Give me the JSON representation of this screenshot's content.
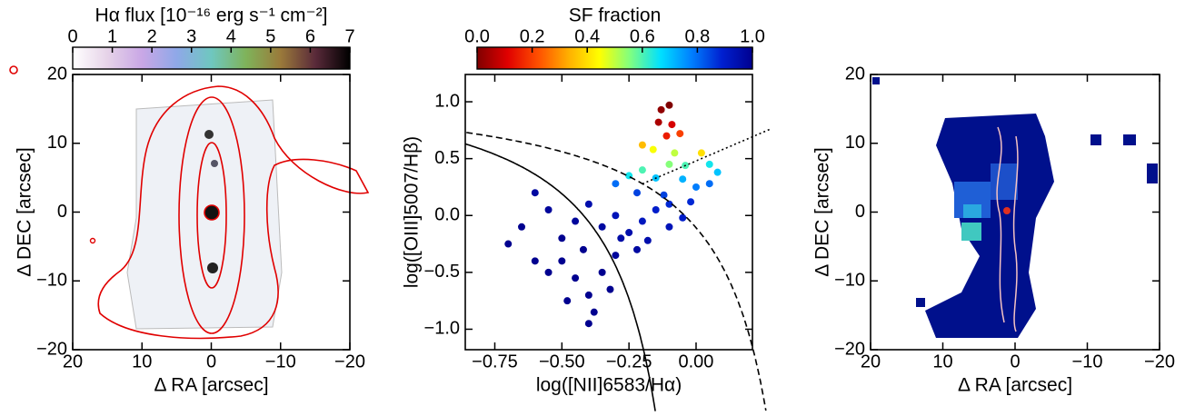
{
  "chart_data": [
    {
      "type": "image",
      "xlabel": "Δ RA [arcsec]",
      "ylabel": "Δ DEC [arcsec]",
      "xlim": [
        20,
        -20
      ],
      "ylim": [
        -20,
        20
      ],
      "xticks": [
        20,
        10,
        0,
        {
          "value": -10,
          "label": "−10"
        },
        {
          "value": -20,
          "label": "−20"
        }
      ],
      "yticks": [
        {
          "value": -20,
          "label": "−20"
        },
        {
          "value": -10,
          "label": "−10"
        },
        0,
        10,
        20
      ],
      "colorbar": {
        "label": "Hα flux [10⁻¹⁶ erg s⁻¹ cm⁻²]",
        "lim": [
          0,
          7
        ],
        "ticks": [
          0,
          1,
          2,
          3,
          4,
          5,
          6,
          7
        ],
        "colors": [
          "#ffffff",
          "#e6d3e8",
          "#c9a7e6",
          "#8fa8e8",
          "#6fc7c0",
          "#7fb35a",
          "#9a7a3a",
          "#5a2a3a",
          "#000000"
        ]
      }
    },
    {
      "type": "scatter",
      "xlabel": "log([NII]6583/Hα)",
      "ylabel": "log([OIII]5007/Hβ)",
      "xlim": [
        -0.86,
        0.21
      ],
      "ylim": [
        -1.18,
        1.24
      ],
      "xticks": [
        {
          "value": -0.75,
          "label": "−0.75"
        },
        {
          "value": -0.5,
          "label": "−0.50"
        },
        {
          "value": -0.25,
          "label": "−0.25"
        },
        {
          "value": 0,
          "label": "0.00"
        }
      ],
      "yticks": [
        {
          "value": -1,
          "label": "−1.0"
        },
        {
          "value": -0.5,
          "label": "−0.5"
        },
        {
          "value": 0,
          "label": "0.0"
        },
        0.5,
        {
          "value": 1,
          "label": "1.0"
        }
      ],
      "colorbar": {
        "label": "SF fraction",
        "lim": [
          0,
          1
        ],
        "ticks": [
          {
            "value": 0,
            "label": "0.0"
          },
          0.2,
          0.4,
          0.6,
          0.8,
          {
            "value": 1,
            "label": "1.0"
          }
        ],
        "colors": [
          "#800000",
          "#e00000",
          "#ff5000",
          "#ffb000",
          "#ffff00",
          "#80ff80",
          "#00e0ff",
          "#0080ff",
          "#0020d0",
          "#00008f"
        ]
      },
      "x": [
        -0.13,
        -0.1,
        -0.14,
        -0.09,
        -0.11,
        -0.06,
        0.02,
        -0.2,
        -0.16,
        -0.08,
        -0.1,
        -0.04,
        0.05,
        0.08,
        -0.2,
        -0.25,
        -0.15,
        -0.05,
        0.0,
        -0.3,
        -0.22,
        -0.12,
        -0.02,
        0.05,
        -0.6,
        -0.55,
        -0.65,
        -0.7,
        -0.5,
        -0.45,
        -0.4,
        -0.35,
        -0.3,
        -0.25,
        -0.2,
        -0.15,
        -0.1,
        -0.5,
        -0.45,
        -0.4,
        -0.38,
        -0.35,
        -0.3,
        -0.42,
        -0.55,
        -0.6,
        -0.48,
        -0.32,
        -0.4,
        -0.28,
        -0.22,
        -0.18,
        -0.05,
        -0.1
      ],
      "y": [
        0.93,
        0.97,
        0.82,
        0.8,
        0.7,
        0.72,
        0.55,
        0.62,
        0.58,
        0.55,
        0.45,
        0.44,
        0.45,
        0.38,
        0.4,
        0.35,
        0.33,
        0.32,
        0.25,
        0.28,
        0.2,
        0.18,
        0.12,
        0.28,
        0.2,
        0.05,
        -0.1,
        -0.25,
        -0.2,
        -0.05,
        0.1,
        -0.1,
        0.0,
        -0.15,
        -0.05,
        0.05,
        -0.1,
        -0.4,
        -0.55,
        -0.7,
        -0.85,
        -0.5,
        -0.35,
        -0.3,
        -0.5,
        -0.4,
        -0.75,
        -0.65,
        -0.95,
        -0.2,
        -0.3,
        -0.22,
        -0.02,
        0.1
      ],
      "sf_fraction": [
        0.02,
        0.0,
        0.05,
        0.1,
        0.15,
        0.2,
        0.4,
        0.35,
        0.45,
        0.5,
        0.55,
        0.6,
        0.65,
        0.7,
        0.6,
        0.65,
        0.7,
        0.72,
        0.78,
        0.8,
        0.85,
        0.85,
        0.88,
        0.8,
        0.97,
        0.98,
        1,
        1,
        1,
        0.98,
        0.95,
        0.97,
        0.93,
        0.95,
        0.92,
        0.9,
        0.93,
        1,
        1,
        1,
        1,
        1,
        0.98,
        1,
        1,
        1,
        1,
        1,
        1,
        0.96,
        0.97,
        0.95,
        0.9,
        0.88
      ]
    },
    {
      "type": "image",
      "xlabel": "Δ RA [arcsec]",
      "ylabel": "Δ DEC [arcsec]",
      "xlim": [
        20,
        -20
      ],
      "ylim": [
        -20,
        20
      ],
      "xticks": [
        20,
        10,
        0,
        {
          "value": -10,
          "label": "−10"
        },
        {
          "value": -20,
          "label": "−20"
        }
      ],
      "yticks": [
        {
          "value": -20,
          "label": "−20"
        },
        {
          "value": -10,
          "label": "−10"
        },
        0,
        10,
        20
      ]
    }
  ]
}
